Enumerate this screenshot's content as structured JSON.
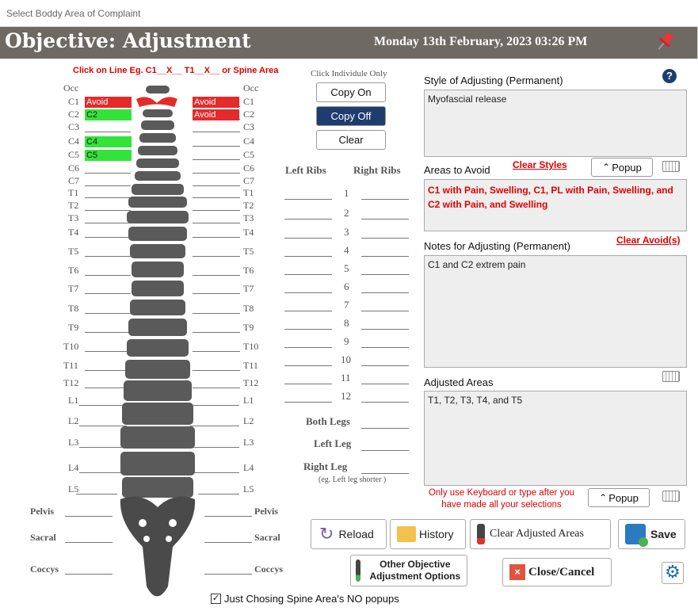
{
  "window": {
    "title": "Select Boddy Area of Complaint"
  },
  "header": {
    "title": "Objective: Adjustment",
    "date": "Monday 13th February, 2023 03:26 PM"
  },
  "instructions": {
    "spine_hint": "Click on Line Eg. C1__X__ T1__X__ or Spine Area",
    "individual": "Click Individule Only"
  },
  "copy_buttons": {
    "copy_on": "Copy On",
    "copy_off": "Copy Off",
    "clear": "Clear"
  },
  "spine_left": [
    {
      "label": "Occ",
      "chip": "",
      "kind": ""
    },
    {
      "label": "C1",
      "chip": "Avoid",
      "kind": "avoid"
    },
    {
      "label": "C2",
      "chip": "C2",
      "kind": "green"
    },
    {
      "label": "C3",
      "chip": "",
      "kind": ""
    },
    {
      "label": "C4",
      "chip": "C4",
      "kind": "green"
    },
    {
      "label": "C5",
      "chip": "C5",
      "kind": "green"
    },
    {
      "label": "C6",
      "chip": "",
      "kind": ""
    },
    {
      "label": "C7",
      "chip": "",
      "kind": ""
    },
    {
      "label": "T1",
      "chip": "",
      "kind": ""
    },
    {
      "label": "T2",
      "chip": "",
      "kind": ""
    },
    {
      "label": "T3",
      "chip": "",
      "kind": ""
    },
    {
      "label": "T4",
      "chip": "",
      "kind": ""
    },
    {
      "label": "T5",
      "chip": "",
      "kind": ""
    },
    {
      "label": "T6",
      "chip": "",
      "kind": ""
    },
    {
      "label": "T7",
      "chip": "",
      "kind": ""
    },
    {
      "label": "T8",
      "chip": "",
      "kind": ""
    },
    {
      "label": "T9",
      "chip": "",
      "kind": ""
    },
    {
      "label": "T10",
      "chip": "",
      "kind": ""
    },
    {
      "label": "T11",
      "chip": "",
      "kind": ""
    },
    {
      "label": "T12",
      "chip": "",
      "kind": ""
    },
    {
      "label": "L1",
      "chip": "",
      "kind": ""
    },
    {
      "label": "L2",
      "chip": "",
      "kind": ""
    },
    {
      "label": "L3",
      "chip": "",
      "kind": ""
    },
    {
      "label": "L4",
      "chip": "",
      "kind": ""
    },
    {
      "label": "L5",
      "chip": "",
      "kind": ""
    },
    {
      "label": "Pelvis",
      "chip": "",
      "kind": ""
    },
    {
      "label": "Sacral",
      "chip": "",
      "kind": ""
    },
    {
      "label": "Coccys",
      "chip": "",
      "kind": ""
    }
  ],
  "spine_right": [
    {
      "label": "Occ",
      "chip": "",
      "kind": ""
    },
    {
      "label": "C1",
      "chip": "Avoid",
      "kind": "avoid"
    },
    {
      "label": "C2",
      "chip": "Avoid",
      "kind": "avoid"
    },
    {
      "label": "C3",
      "chip": "",
      "kind": ""
    },
    {
      "label": "C4",
      "chip": "",
      "kind": ""
    },
    {
      "label": "C5",
      "chip": "",
      "kind": ""
    },
    {
      "label": "C6",
      "chip": "",
      "kind": ""
    },
    {
      "label": "C7",
      "chip": "",
      "kind": ""
    },
    {
      "label": "T1",
      "chip": "",
      "kind": ""
    },
    {
      "label": "T2",
      "chip": "",
      "kind": ""
    },
    {
      "label": "T3",
      "chip": "",
      "kind": ""
    },
    {
      "label": "T4",
      "chip": "",
      "kind": ""
    },
    {
      "label": "T5",
      "chip": "",
      "kind": ""
    },
    {
      "label": "T6",
      "chip": "",
      "kind": ""
    },
    {
      "label": "T7",
      "chip": "",
      "kind": ""
    },
    {
      "label": "T8",
      "chip": "",
      "kind": ""
    },
    {
      "label": "T9",
      "chip": "",
      "kind": ""
    },
    {
      "label": "T10",
      "chip": "",
      "kind": ""
    },
    {
      "label": "T11",
      "chip": "",
      "kind": ""
    },
    {
      "label": "T12",
      "chip": "",
      "kind": ""
    },
    {
      "label": "L1",
      "chip": "",
      "kind": ""
    },
    {
      "label": "L2",
      "chip": "",
      "kind": ""
    },
    {
      "label": "L3",
      "chip": "",
      "kind": ""
    },
    {
      "label": "L4",
      "chip": "",
      "kind": ""
    },
    {
      "label": "L5",
      "chip": "",
      "kind": ""
    },
    {
      "label": "Pelvis",
      "chip": "",
      "kind": ""
    },
    {
      "label": "Sacral",
      "chip": "",
      "kind": ""
    },
    {
      "label": "Coccys",
      "chip": "",
      "kind": ""
    }
  ],
  "ribs": {
    "left_header": "Left Ribs",
    "right_header": "Right Ribs",
    "numbers": [
      "1",
      "2",
      "3",
      "4",
      "5",
      "6",
      "7",
      "8",
      "9",
      "10",
      "11",
      "12"
    ]
  },
  "legs": {
    "both": "Both Legs",
    "left": "Left Leg",
    "right": "Right Leg",
    "note": "(eg. Left leg shorter )"
  },
  "style_section": {
    "label": "Style of Adjusting (Permanent)",
    "value": "Myofascial release"
  },
  "avoid_section": {
    "label": "Areas to Avoid",
    "clear_styles": "Clear  Styles",
    "popup": "Popup",
    "value": "C1 with Pain, Swelling,  C1, PL with Pain, Swelling, and  C2 with Pain, and Swelling"
  },
  "notes_section": {
    "label": "Notes for Adjusting (Permanent)",
    "clear_avoid": "Clear Avoid(s)",
    "value": "C1 and C2 extrem pain"
  },
  "adjusted_section": {
    "label": "Adjusted Areas",
    "value": "T1,  T2,  T3,  T4, and T5",
    "hint": "Only use Keyboard or type after you have made all your selections",
    "popup": "Popup"
  },
  "actions": {
    "reload": "Reload",
    "history": "History",
    "clear_adjusted": "Clear Adjusted Areas",
    "save": "Save",
    "other_objective": "Other Objective Adjustment Options",
    "close_cancel": "Close/Cancel"
  },
  "checkbox": {
    "label": "Just Chosing Spine Area's NO popups",
    "checked": true
  },
  "colors": {
    "header": "#6e6963",
    "avoid": "#e52a2a",
    "selected": "#33e33a",
    "copy_off": "#1e3d6e"
  }
}
